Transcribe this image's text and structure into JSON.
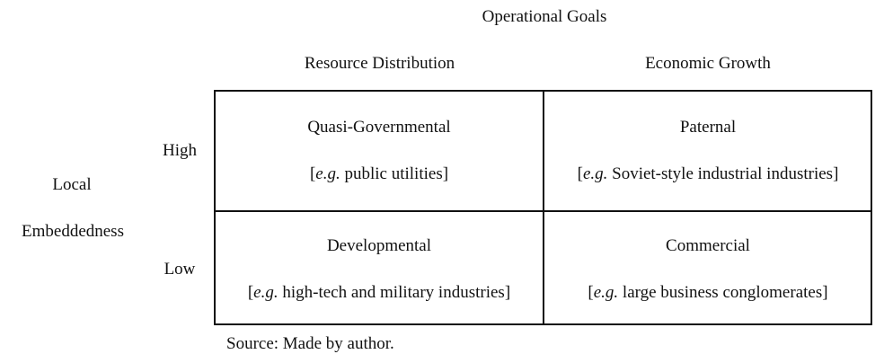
{
  "header": {
    "title": "Operational Goals",
    "columns": [
      "Resource Distribution",
      "Economic Growth"
    ]
  },
  "axis": {
    "line1": "Local",
    "line2": "Embeddedness",
    "rows": [
      "High",
      "Low"
    ]
  },
  "cells": {
    "high_distribution": {
      "title": "Quasi-Governmental",
      "eg": "e.g.",
      "example": " public utilities"
    },
    "high_growth": {
      "title": "Paternal",
      "eg": "e.g.",
      "example": " Soviet-style industrial industries"
    },
    "low_distribution": {
      "title": "Developmental",
      "eg": "e.g.",
      "example": " high-tech and military industries"
    },
    "low_growth": {
      "title": "Commercial",
      "eg": "e.g.",
      "example": " large business conglomerates"
    }
  },
  "source": "Source: Made by author."
}
